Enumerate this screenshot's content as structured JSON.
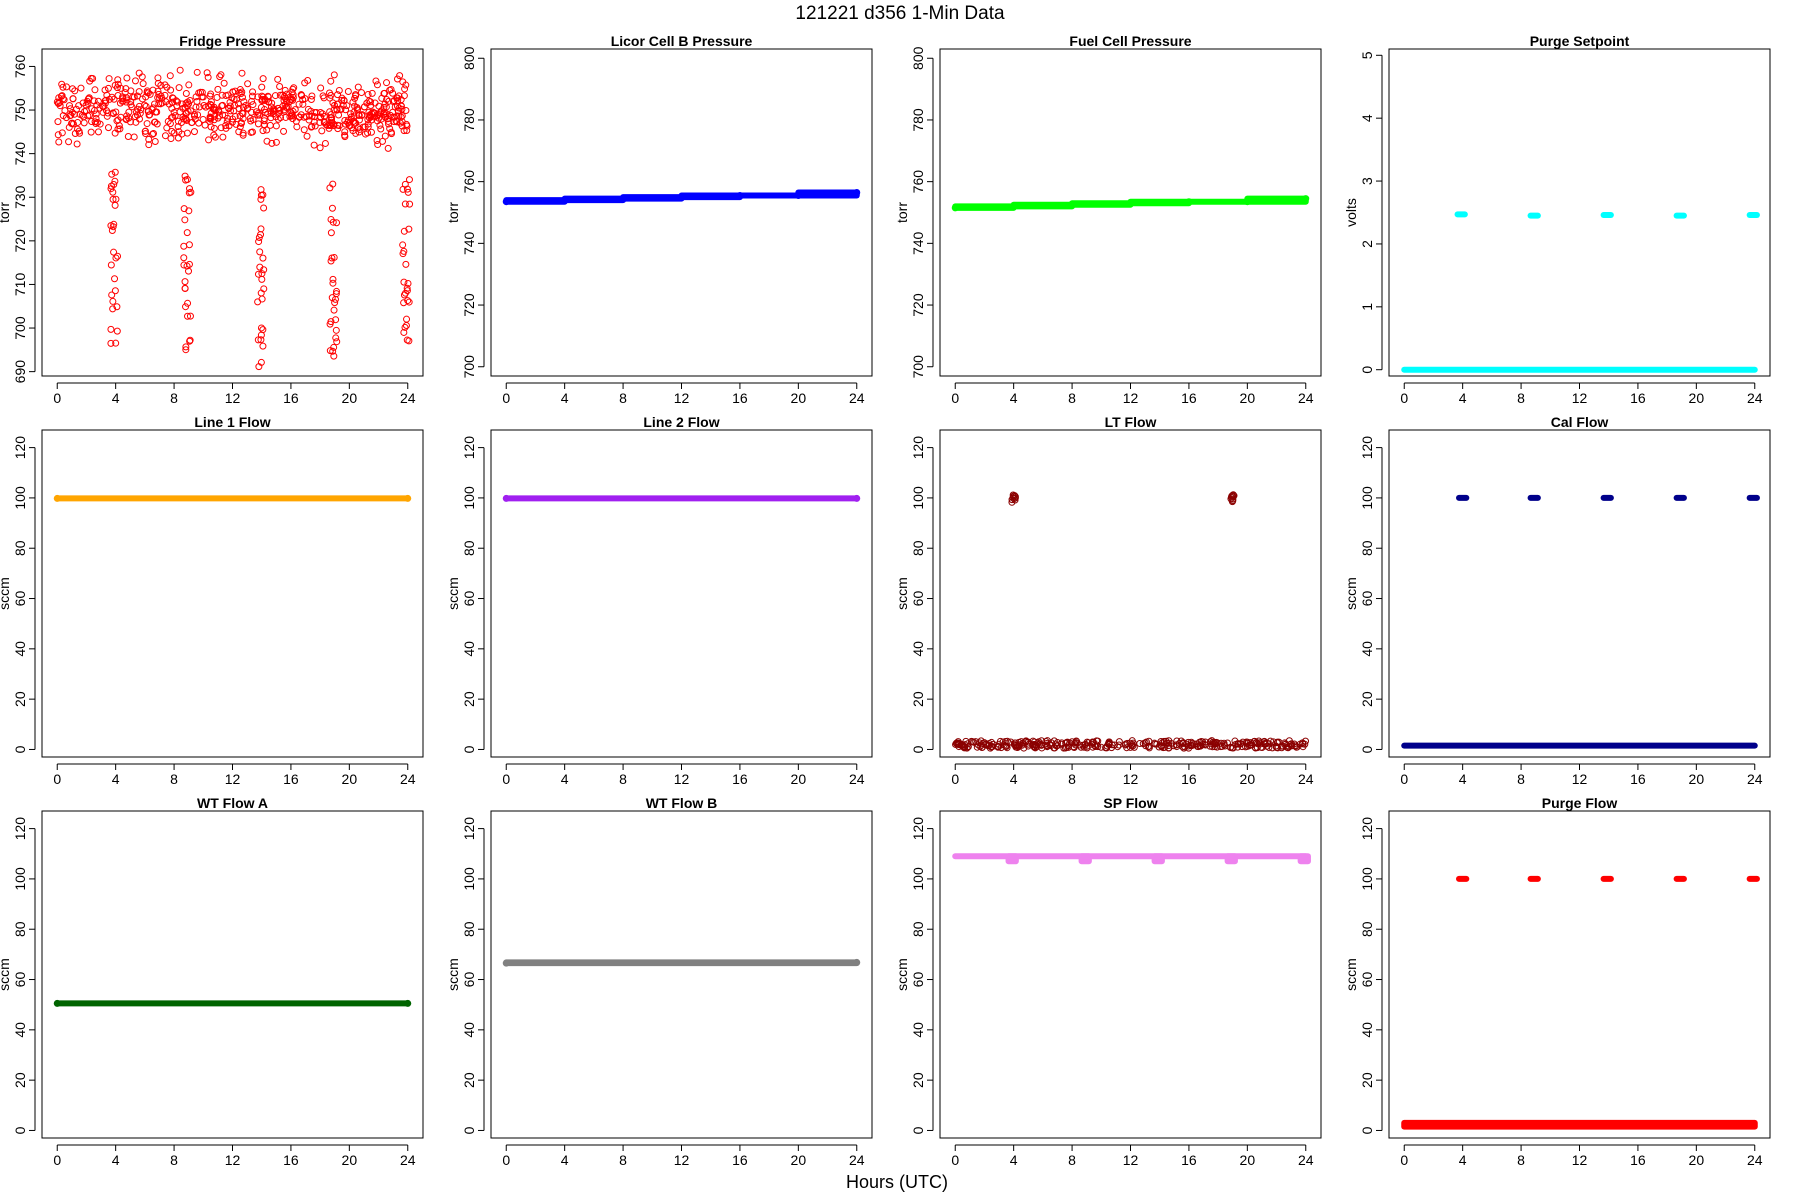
{
  "figure": {
    "title": "121221    d356    1-Min Data",
    "xlabel": "Hours (UTC)"
  },
  "chart_data": [
    {
      "type": "scatter",
      "title": "Fridge Pressure",
      "ylabel": "torr",
      "color": "#ff0000",
      "marker": "open-circle",
      "xlim": [
        0,
        24
      ],
      "ylim": [
        689,
        764
      ],
      "xticks": [
        0,
        4,
        8,
        12,
        16,
        20,
        24
      ],
      "yticks": [
        690,
        700,
        710,
        720,
        730,
        740,
        750,
        760
      ],
      "series": [
        {
          "values": {
            "baseline_range": [
              738,
              762
            ],
            "drops": [
              {
                "x": 3.9,
                "y_range": [
                  694,
                  737
                ]
              },
              {
                "x": 8.9,
                "y_range": [
                  692,
                  735
                ]
              },
              {
                "x": 13.9,
                "y_range": [
                  690,
                  735
                ]
              },
              {
                "x": 18.9,
                "y_range": [
                  693,
                  735
                ]
              },
              {
                "x": 23.9,
                "y_range": [
                  694,
                  735
                ]
              }
            ]
          }
        }
      ]
    },
    {
      "type": "scatter",
      "title": "Licor Cell B Pressure",
      "ylabel": "torr",
      "color": "#0000ff",
      "marker": "filled",
      "xlim": [
        0,
        24
      ],
      "ylim": [
        697,
        803
      ],
      "xticks": [
        0,
        4,
        8,
        12,
        16,
        20,
        24
      ],
      "yticks": [
        700,
        720,
        740,
        760,
        780,
        800
      ],
      "series": [
        {
          "x": [
            0,
            4,
            8,
            12,
            16,
            20,
            24
          ],
          "y": [
            753.5,
            754,
            754.5,
            755,
            755.5,
            755.5,
            756.5
          ]
        }
      ]
    },
    {
      "type": "scatter",
      "title": "Fuel Cell Pressure",
      "ylabel": "torr",
      "color": "#00ff00",
      "marker": "filled",
      "xlim": [
        0,
        24
      ],
      "ylim": [
        697,
        803
      ],
      "xticks": [
        0,
        4,
        8,
        12,
        16,
        20,
        24
      ],
      "yticks": [
        700,
        720,
        740,
        760,
        780,
        800
      ],
      "series": [
        {
          "x": [
            0,
            4,
            8,
            12,
            16,
            20,
            24
          ],
          "y": [
            751.5,
            752,
            752.5,
            753,
            753.5,
            753.5,
            754.5
          ]
        }
      ]
    },
    {
      "type": "scatter",
      "title": "Purge Setpoint",
      "ylabel": "volts",
      "color": "#00ffff",
      "marker": "filled",
      "xlim": [
        0,
        24
      ],
      "ylim": [
        -0.1,
        5.1
      ],
      "xticks": [
        0,
        4,
        8,
        12,
        16,
        20,
        24
      ],
      "yticks": [
        0,
        1,
        2,
        3,
        4,
        5
      ],
      "series": [
        {
          "baseline": 0,
          "pulses": [
            {
              "x": 3.9,
              "y": 2.47
            },
            {
              "x": 8.9,
              "y": 2.45
            },
            {
              "x": 13.9,
              "y": 2.46
            },
            {
              "x": 18.9,
              "y": 2.45
            },
            {
              "x": 23.9,
              "y": 2.46
            }
          ]
        }
      ]
    },
    {
      "type": "scatter",
      "title": "Line 1 Flow",
      "ylabel": "sccm",
      "color": "#ffa500",
      "marker": "filled",
      "xlim": [
        0,
        24
      ],
      "ylim": [
        -3,
        127
      ],
      "xticks": [
        0,
        4,
        8,
        12,
        16,
        20,
        24
      ],
      "yticks": [
        0,
        20,
        40,
        60,
        80,
        100,
        120
      ],
      "series": [
        {
          "x": [
            0,
            24
          ],
          "y": [
            99.8,
            99.8
          ]
        }
      ]
    },
    {
      "type": "scatter",
      "title": "Line 2 Flow",
      "ylabel": "sccm",
      "color": "#a020f0",
      "marker": "filled",
      "xlim": [
        0,
        24
      ],
      "ylim": [
        -3,
        127
      ],
      "xticks": [
        0,
        4,
        8,
        12,
        16,
        20,
        24
      ],
      "yticks": [
        0,
        20,
        40,
        60,
        80,
        100,
        120
      ],
      "series": [
        {
          "x": [
            0,
            24
          ],
          "y": [
            99.8,
            99.8
          ]
        }
      ]
    },
    {
      "type": "scatter",
      "title": "LT Flow",
      "ylabel": "sccm",
      "color": "#8b0000",
      "marker": "open-circle",
      "xlim": [
        0,
        24
      ],
      "ylim": [
        -3,
        127
      ],
      "xticks": [
        0,
        4,
        8,
        12,
        16,
        20,
        24
      ],
      "yticks": [
        0,
        20,
        40,
        60,
        80,
        100,
        120
      ],
      "series": [
        {
          "baseline_range": [
            0.5,
            3.5
          ],
          "pulses": [
            {
              "x": 4.0,
              "y_range": [
                98,
                101.5
              ]
            },
            {
              "x": 19.0,
              "y_range": [
                98,
                101.5
              ]
            }
          ]
        }
      ]
    },
    {
      "type": "scatter",
      "title": "Cal Flow",
      "ylabel": "sccm",
      "color": "#00008b",
      "marker": "filled",
      "xlim": [
        0,
        24
      ],
      "ylim": [
        -3,
        127
      ],
      "xticks": [
        0,
        4,
        8,
        12,
        16,
        20,
        24
      ],
      "yticks": [
        0,
        20,
        40,
        60,
        80,
        100,
        120
      ],
      "series": [
        {
          "baseline": 1.5,
          "pulses": [
            {
              "x": 4.0,
              "y": 100
            },
            {
              "x": 8.9,
              "y": 100
            },
            {
              "x": 13.9,
              "y": 100
            },
            {
              "x": 18.9,
              "y": 100
            },
            {
              "x": 23.9,
              "y": 100
            }
          ]
        }
      ]
    },
    {
      "type": "scatter",
      "title": "WT Flow A",
      "ylabel": "sccm",
      "color": "#006400",
      "marker": "filled",
      "xlim": [
        0,
        24
      ],
      "ylim": [
        -3,
        127
      ],
      "xticks": [
        0,
        4,
        8,
        12,
        16,
        20,
        24
      ],
      "yticks": [
        0,
        20,
        40,
        60,
        80,
        100,
        120
      ],
      "series": [
        {
          "x": [
            0,
            24
          ],
          "y": [
            50.5,
            50.5
          ]
        }
      ]
    },
    {
      "type": "scatter",
      "title": "WT Flow B",
      "ylabel": "sccm",
      "color": "#808080",
      "marker": "filled",
      "xlim": [
        0,
        24
      ],
      "ylim": [
        -3,
        127
      ],
      "xticks": [
        0,
        4,
        8,
        12,
        16,
        20,
        24
      ],
      "yticks": [
        0,
        20,
        40,
        60,
        80,
        100,
        120
      ],
      "series": [
        {
          "x": [
            0,
            24
          ],
          "y": [
            66.5,
            66.8
          ]
        }
      ]
    },
    {
      "type": "scatter",
      "title": "SP Flow",
      "ylabel": "sccm",
      "color": "#ee82ee",
      "marker": "filled",
      "xlim": [
        0,
        24
      ],
      "ylim": [
        -3,
        127
      ],
      "xticks": [
        0,
        4,
        8,
        12,
        16,
        20,
        24
      ],
      "yticks": [
        0,
        20,
        40,
        60,
        80,
        100,
        120
      ],
      "series": [
        {
          "baseline": 109,
          "dips": [
            {
              "x": 3.9,
              "y": 107
            },
            {
              "x": 8.9,
              "y": 107
            },
            {
              "x": 13.9,
              "y": 107
            },
            {
              "x": 18.9,
              "y": 107
            },
            {
              "x": 23.9,
              "y": 107
            }
          ]
        }
      ]
    },
    {
      "type": "scatter",
      "title": "Purge Flow",
      "ylabel": "sccm",
      "color": "#ff0000",
      "marker": "filled",
      "xlim": [
        0,
        24
      ],
      "ylim": [
        -3,
        127
      ],
      "xticks": [
        0,
        4,
        8,
        12,
        16,
        20,
        24
      ],
      "yticks": [
        0,
        20,
        40,
        60,
        80,
        100,
        120
      ],
      "series": [
        {
          "baseline_range": [
            1.5,
            3
          ],
          "pulses": [
            {
              "x": 4.0,
              "y": 100
            },
            {
              "x": 8.9,
              "y": 100
            },
            {
              "x": 13.9,
              "y": 100
            },
            {
              "x": 18.9,
              "y": 100
            },
            {
              "x": 23.9,
              "y": 100
            }
          ]
        }
      ]
    }
  ]
}
